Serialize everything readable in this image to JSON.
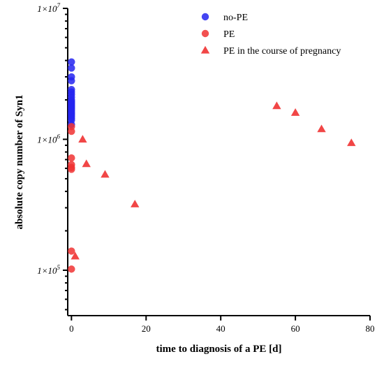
{
  "chart_data": {
    "type": "scatter",
    "title": "",
    "xlabel": "time to diagnosis of a PE [d]",
    "ylabel": "absolute copy number of Syn1",
    "xlim": [
      -1,
      80
    ],
    "ylim": [
      45000,
      10000000
    ],
    "y_scale": "log",
    "x_ticks": [
      0,
      20,
      40,
      60,
      80
    ],
    "x_tick_labels": [
      "0",
      "20",
      "40",
      "60",
      "80"
    ],
    "y_ticks": [
      100000,
      1000000,
      10000000
    ],
    "y_tick_labels": [
      {
        "base": "1×10",
        "exp": "5"
      },
      {
        "base": "1×10",
        "exp": "6"
      },
      {
        "base": "1×10",
        "exp": "7"
      }
    ],
    "grid": false,
    "legend_position": "top-right",
    "series": [
      {
        "name": "no-PE",
        "marker": "circle",
        "color": "#2424f0",
        "x": [
          0,
          0,
          0,
          0,
          0,
          0,
          0,
          0,
          0,
          0,
          0,
          0,
          0,
          0,
          0,
          0,
          0,
          0,
          0,
          0,
          0,
          0
        ],
        "y": [
          3900000,
          3500000,
          3000000,
          2800000,
          2400000,
          2300000,
          2200000,
          2100000,
          2000000,
          1950000,
          1900000,
          1850000,
          1800000,
          1750000,
          1700000,
          1650000,
          1600000,
          1550000,
          1500000,
          1450000,
          1400000,
          1300000
        ]
      },
      {
        "name": "PE",
        "marker": "circle",
        "color": "#f03232",
        "x": [
          0,
          0,
          0,
          0,
          0,
          0,
          0,
          0
        ],
        "y": [
          1250000,
          1150000,
          720000,
          640000,
          610000,
          590000,
          140000,
          102000
        ]
      },
      {
        "name": "PE in the course of pregnancy",
        "marker": "triangle",
        "color": "#f03232",
        "x": [
          1,
          3,
          4,
          9,
          17,
          55,
          60,
          67,
          75
        ],
        "y": [
          128000,
          1000000,
          650000,
          540000,
          320000,
          1800000,
          1600000,
          1200000,
          940000
        ]
      }
    ]
  }
}
